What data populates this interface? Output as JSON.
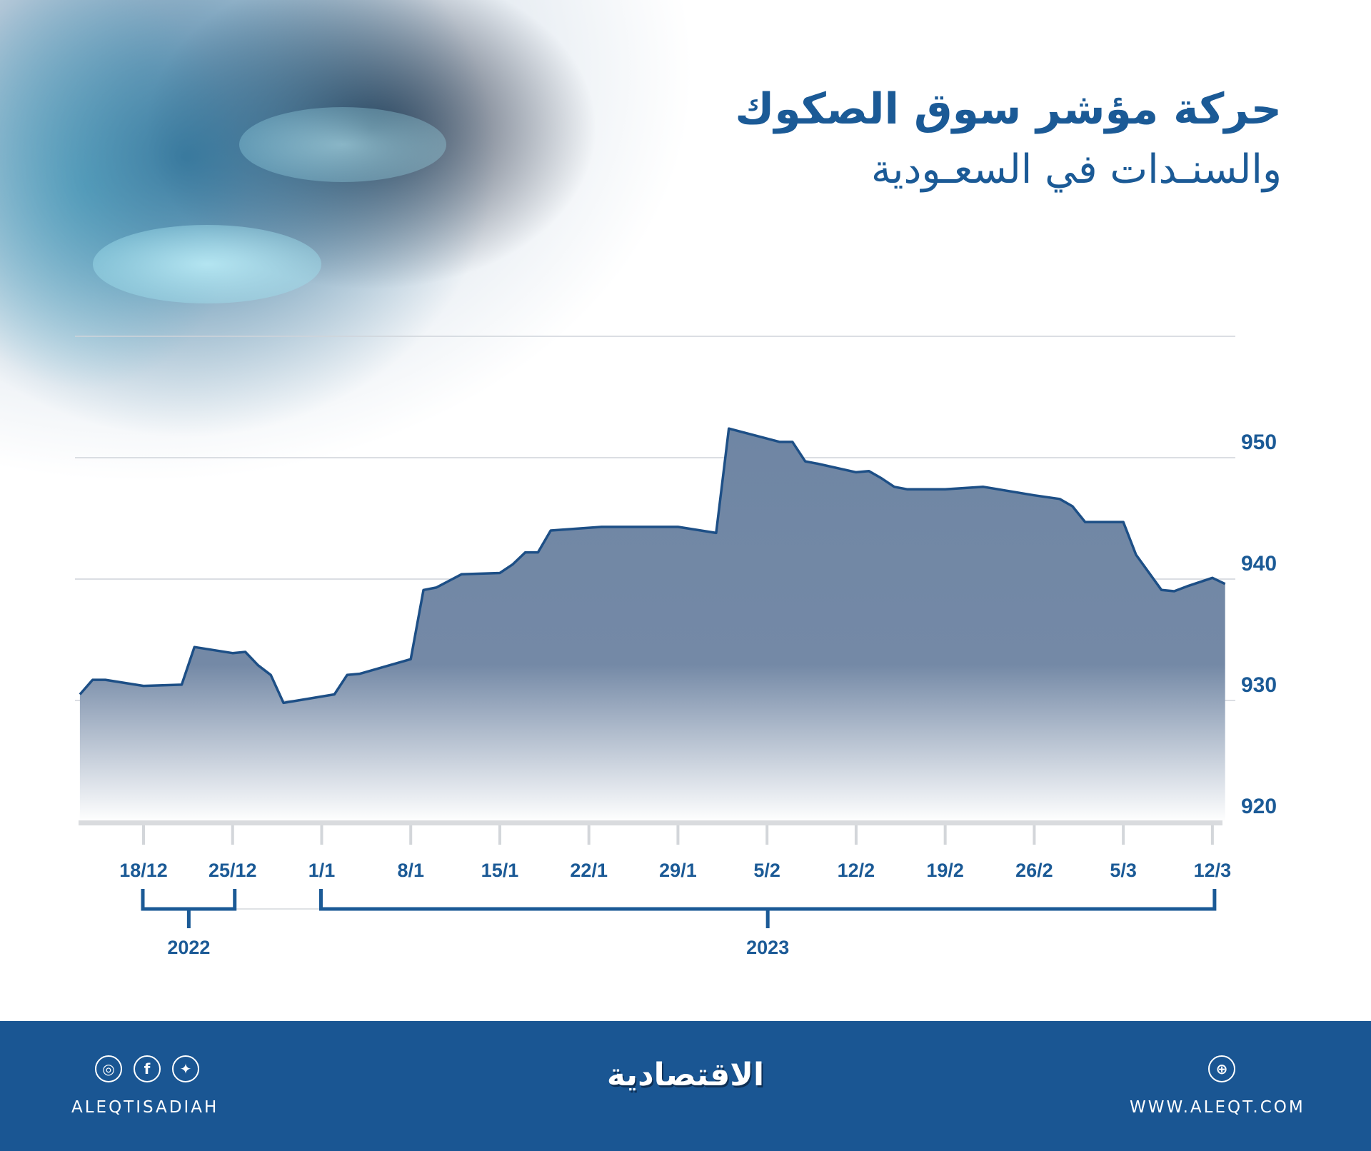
{
  "title": {
    "line1": "حركة مؤشر سوق الصكوك",
    "line2": "والسنـدات في السعـودية"
  },
  "chart_data": {
    "type": "area",
    "title": "حركة مؤشر سوق الصكوك والسندات في السعودية",
    "xlabel": "",
    "ylabel": "",
    "ylim": [
      920,
      960
    ],
    "yticks": [
      920,
      930,
      940,
      950
    ],
    "xtick_labels": [
      "18/12",
      "25/12",
      "1/1",
      "8/1",
      "15/1",
      "22/1",
      "29/1",
      "5/2",
      "12/2",
      "19/2",
      "26/2",
      "5/3",
      "12/3"
    ],
    "year_groups": [
      {
        "label": "2022",
        "from": "18/12",
        "to": "25/12"
      },
      {
        "label": "2023",
        "from": "1/1",
        "to": "12/3"
      }
    ],
    "grid": true,
    "colors": {
      "line": "#1d4f86",
      "fill_top": "#6f86a4",
      "accent": "#1b5a96"
    },
    "x": [
      "13/12",
      "14/12",
      "15/12",
      "18/12",
      "21/12",
      "22/12",
      "25/12",
      "26/12",
      "27/12",
      "28/12",
      "29/12",
      "2/1",
      "3/1",
      "4/1",
      "8/1",
      "9/1",
      "10/1",
      "12/1",
      "15/1",
      "16/1",
      "17/1",
      "18/1",
      "19/1",
      "23/1",
      "29/1",
      "1/2",
      "2/2",
      "6/2",
      "7/2",
      "8/2",
      "9/2",
      "12/2",
      "13/2",
      "14/2",
      "15/2",
      "16/2",
      "19/2",
      "22/2",
      "26/2",
      "28/2",
      "1/3",
      "2/3",
      "5/3",
      "6/3",
      "8/3",
      "9/3",
      "10/3",
      "12/3",
      "13/3"
    ],
    "values": [
      930.5,
      931.7,
      931.7,
      931.2,
      931.3,
      934.4,
      933.9,
      934.0,
      932.9,
      932.1,
      929.8,
      930.5,
      932.1,
      932.2,
      933.4,
      939.1,
      939.3,
      940.4,
      940.5,
      941.2,
      942.2,
      942.2,
      944.0,
      944.3,
      944.3,
      943.8,
      952.4,
      951.3,
      951.3,
      949.7,
      949.5,
      948.8,
      948.9,
      948.3,
      947.6,
      947.4,
      947.4,
      947.6,
      946.9,
      946.6,
      946.0,
      944.7,
      944.7,
      942.0,
      939.1,
      939.0,
      939.4,
      940.1,
      939.6
    ]
  },
  "footer": {
    "social_handle": "ALEQTISADIAH",
    "logo_text": "الاقتصادية",
    "website": "WWW.ALEQT.COM",
    "icons": [
      "instagram-icon",
      "facebook-icon",
      "twitter-icon",
      "dribbble-icon"
    ],
    "background": "#1a5693"
  }
}
